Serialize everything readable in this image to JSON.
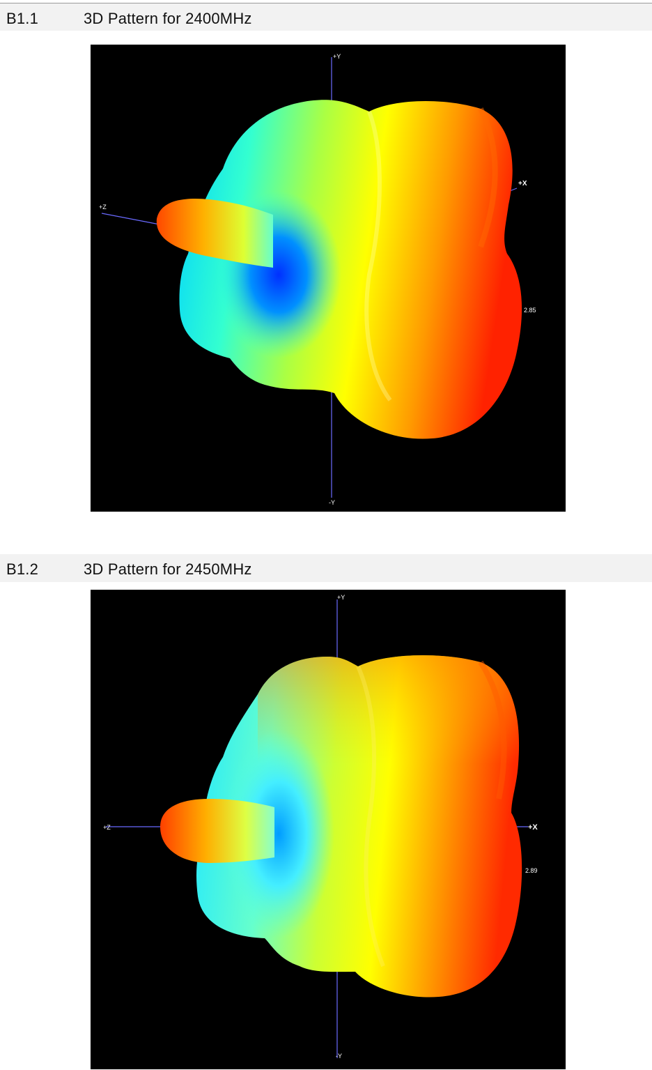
{
  "sections": [
    {
      "number": "B1.1",
      "title": "3D Pattern for 2400MHz",
      "figure": {
        "axis_labels": {
          "top": "+Y",
          "left": "+Z",
          "right": "+X",
          "bottom": "-Y"
        },
        "max_gain_label": "2.85"
      }
    },
    {
      "number": "B1.2",
      "title": "3D Pattern for 2450MHz",
      "figure": {
        "axis_labels": {
          "top": "+Y",
          "left": "+Z",
          "right": "+X",
          "bottom": "-Y"
        },
        "max_gain_label": "2.89"
      }
    }
  ],
  "colors": {
    "header_bg": "#f2f2f2",
    "figure_bg": "#000000",
    "axis_line": "#6a6aff",
    "pattern_high": "#ff2a00",
    "pattern_mid": "#ffff00",
    "pattern_low": "#00c8ff"
  }
}
